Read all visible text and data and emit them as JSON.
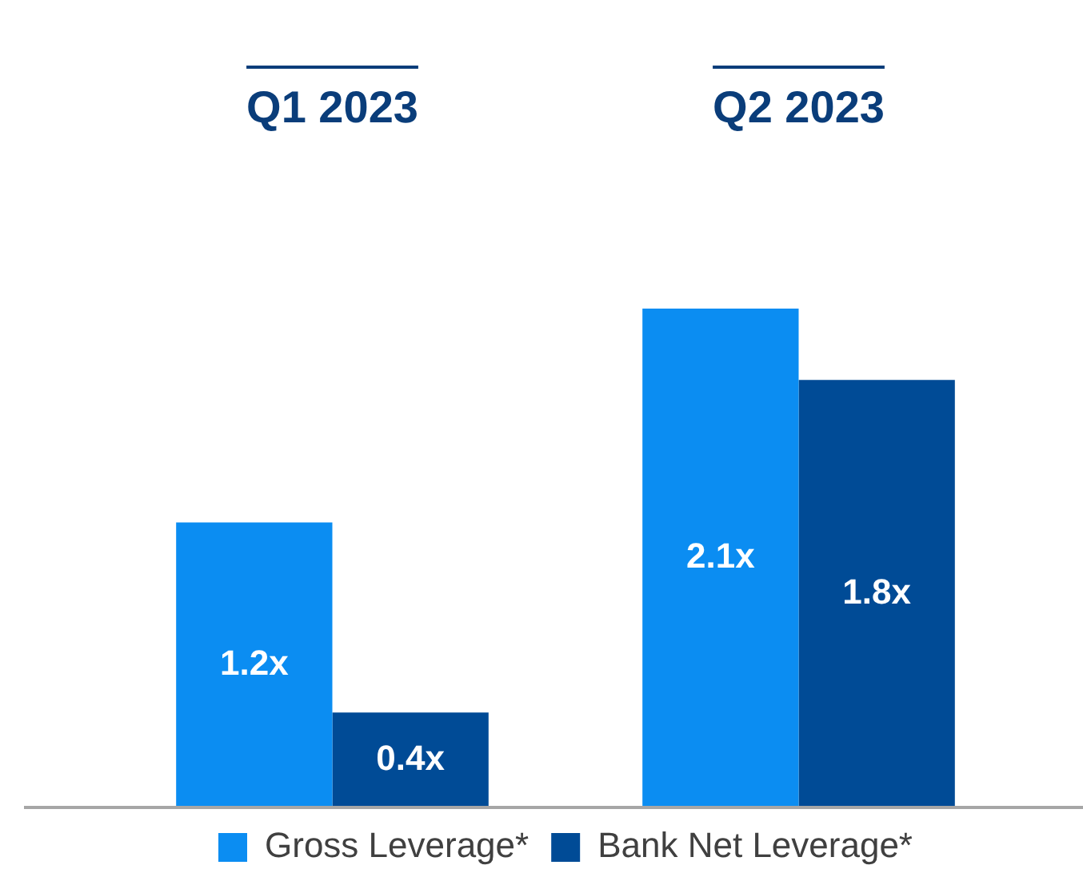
{
  "chart_data": {
    "type": "bar",
    "categories": [
      "Q1 2023",
      "Q2 2023"
    ],
    "series": [
      {
        "name": "Gross Leverage*",
        "color": "#0b8df2",
        "values": [
          1.2,
          2.1
        ],
        "value_labels": [
          "1.2x",
          "2.1x"
        ]
      },
      {
        "name": "Bank Net Leverage*",
        "color": "#004b96",
        "values": [
          0.4,
          1.8
        ],
        "value_labels": [
          "0.4x",
          "1.8x"
        ]
      }
    ],
    "grid": false,
    "legend": "bottom"
  }
}
